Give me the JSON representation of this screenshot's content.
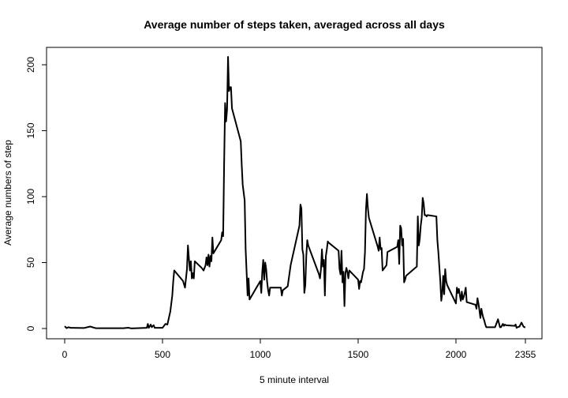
{
  "chart_data": {
    "type": "line",
    "title": "Average number of steps taken, averaged across all days",
    "xlabel": "5 minute interval",
    "ylabel": "Average numbers of step",
    "xlim": [
      0,
      2355
    ],
    "ylim": [
      0,
      206
    ],
    "x_ticks": [
      0,
      500,
      1000,
      1500,
      2000,
      2355
    ],
    "y_ticks": [
      0,
      50,
      100,
      150,
      200
    ],
    "grid": false,
    "legend": "none",
    "series": [
      {
        "color": "#000000",
        "points": [
          [
            0,
            1.7
          ],
          [
            10,
            0.3
          ],
          [
            20,
            1.0
          ],
          [
            30,
            0.5
          ],
          [
            100,
            0.4
          ],
          [
            130,
            1.5
          ],
          [
            160,
            0.2
          ],
          [
            300,
            0.2
          ],
          [
            325,
            0.6
          ],
          [
            340,
            0.1
          ],
          [
            420,
            0.5
          ],
          [
            425,
            3.5
          ],
          [
            430,
            0.5
          ],
          [
            440,
            3.0
          ],
          [
            445,
            1.0
          ],
          [
            455,
            2.5
          ],
          [
            460,
            0.5
          ],
          [
            500,
            0.5
          ],
          [
            515,
            3.5
          ],
          [
            525,
            3.0
          ],
          [
            540,
            13
          ],
          [
            550,
            25
          ],
          [
            555,
            36
          ],
          [
            560,
            44
          ],
          [
            605,
            36
          ],
          [
            615,
            31
          ],
          [
            625,
            45
          ],
          [
            630,
            63
          ],
          [
            635,
            53
          ],
          [
            640,
            44
          ],
          [
            645,
            51
          ],
          [
            650,
            38
          ],
          [
            655,
            42
          ],
          [
            660,
            38
          ],
          [
            665,
            51
          ],
          [
            700,
            46
          ],
          [
            710,
            44
          ],
          [
            720,
            48
          ],
          [
            725,
            54
          ],
          [
            730,
            48
          ],
          [
            735,
            56
          ],
          [
            740,
            47
          ],
          [
            745,
            55
          ],
          [
            750,
            51
          ],
          [
            755,
            69
          ],
          [
            760,
            57
          ],
          [
            800,
            67
          ],
          [
            805,
            73
          ],
          [
            810,
            70
          ],
          [
            815,
            125
          ],
          [
            820,
            171
          ],
          [
            825,
            157
          ],
          [
            830,
            166
          ],
          [
            835,
            206
          ],
          [
            840,
            180
          ],
          [
            845,
            183
          ],
          [
            850,
            183
          ],
          [
            855,
            167
          ],
          [
            900,
            142
          ],
          [
            905,
            124
          ],
          [
            910,
            109
          ],
          [
            920,
            97
          ],
          [
            925,
            60
          ],
          [
            935,
            25
          ],
          [
            940,
            38
          ],
          [
            945,
            22
          ],
          [
            1000,
            36
          ],
          [
            1005,
            27
          ],
          [
            1010,
            43
          ],
          [
            1015,
            52
          ],
          [
            1020,
            37
          ],
          [
            1025,
            50
          ],
          [
            1030,
            45
          ],
          [
            1035,
            35
          ],
          [
            1040,
            29
          ],
          [
            1045,
            25
          ],
          [
            1050,
            31
          ],
          [
            1105,
            31
          ],
          [
            1110,
            25
          ],
          [
            1115,
            29
          ],
          [
            1140,
            32
          ],
          [
            1155,
            48
          ],
          [
            1200,
            78
          ],
          [
            1205,
            94
          ],
          [
            1210,
            91
          ],
          [
            1215,
            60
          ],
          [
            1220,
            56
          ],
          [
            1225,
            27
          ],
          [
            1230,
            33
          ],
          [
            1235,
            55
          ],
          [
            1240,
            67
          ],
          [
            1245,
            63
          ],
          [
            1300,
            41
          ],
          [
            1305,
            38
          ],
          [
            1310,
            45
          ],
          [
            1315,
            60
          ],
          [
            1320,
            47
          ],
          [
            1325,
            52
          ],
          [
            1330,
            25
          ],
          [
            1335,
            55
          ],
          [
            1340,
            60
          ],
          [
            1345,
            66
          ],
          [
            1350,
            65
          ],
          [
            1400,
            59
          ],
          [
            1405,
            45
          ],
          [
            1410,
            41
          ],
          [
            1415,
            59
          ],
          [
            1420,
            35
          ],
          [
            1425,
            43
          ],
          [
            1430,
            17
          ],
          [
            1435,
            42
          ],
          [
            1440,
            46
          ],
          [
            1445,
            43
          ],
          [
            1450,
            38
          ],
          [
            1455,
            44
          ],
          [
            1500,
            37
          ],
          [
            1505,
            30
          ],
          [
            1510,
            36
          ],
          [
            1515,
            35
          ],
          [
            1525,
            43
          ],
          [
            1530,
            45
          ],
          [
            1535,
            58
          ],
          [
            1540,
            90
          ],
          [
            1545,
            102
          ],
          [
            1550,
            91
          ],
          [
            1555,
            84
          ],
          [
            1600,
            62
          ],
          [
            1605,
            59
          ],
          [
            1610,
            69
          ],
          [
            1615,
            60
          ],
          [
            1620,
            61
          ],
          [
            1625,
            44
          ],
          [
            1630,
            45
          ],
          [
            1635,
            46
          ],
          [
            1640,
            47
          ],
          [
            1645,
            48
          ],
          [
            1650,
            58
          ],
          [
            1700,
            62
          ],
          [
            1705,
            67
          ],
          [
            1710,
            49
          ],
          [
            1715,
            78
          ],
          [
            1720,
            76
          ],
          [
            1725,
            63
          ],
          [
            1730,
            68
          ],
          [
            1735,
            35
          ],
          [
            1740,
            37
          ],
          [
            1745,
            40
          ],
          [
            1800,
            47
          ],
          [
            1805,
            85
          ],
          [
            1810,
            63
          ],
          [
            1815,
            68
          ],
          [
            1820,
            78
          ],
          [
            1825,
            84
          ],
          [
            1830,
            99
          ],
          [
            1835,
            95
          ],
          [
            1840,
            86
          ],
          [
            1845,
            86
          ],
          [
            1850,
            85
          ],
          [
            1855,
            86
          ],
          [
            1900,
            85
          ],
          [
            1905,
            67
          ],
          [
            1910,
            58
          ],
          [
            1915,
            47
          ],
          [
            1920,
            36
          ],
          [
            1925,
            21
          ],
          [
            1930,
            27
          ],
          [
            1935,
            40
          ],
          [
            1940,
            26
          ],
          [
            1945,
            45
          ],
          [
            1950,
            36
          ],
          [
            1955,
            33
          ],
          [
            2000,
            19
          ],
          [
            2005,
            31
          ],
          [
            2010,
            27
          ],
          [
            2015,
            30
          ],
          [
            2020,
            25
          ],
          [
            2025,
            21
          ],
          [
            2030,
            28
          ],
          [
            2035,
            22
          ],
          [
            2040,
            24
          ],
          [
            2045,
            27
          ],
          [
            2050,
            31
          ],
          [
            2055,
            20
          ],
          [
            2100,
            18
          ],
          [
            2105,
            15
          ],
          [
            2110,
            23
          ],
          [
            2115,
            19
          ],
          [
            2120,
            14
          ],
          [
            2125,
            8
          ],
          [
            2130,
            15
          ],
          [
            2135,
            11
          ],
          [
            2140,
            8
          ],
          [
            2145,
            6
          ],
          [
            2150,
            3
          ],
          [
            2155,
            1
          ],
          [
            2200,
            1
          ],
          [
            2210,
            5
          ],
          [
            2215,
            7
          ],
          [
            2220,
            4
          ],
          [
            2225,
            1
          ],
          [
            2230,
            1
          ],
          [
            2240,
            3.5
          ],
          [
            2245,
            2
          ],
          [
            2250,
            3
          ],
          [
            2255,
            2.5
          ],
          [
            2300,
            2
          ],
          [
            2305,
            3
          ],
          [
            2310,
            0.5
          ],
          [
            2315,
            1
          ],
          [
            2325,
            1.5
          ],
          [
            2330,
            3
          ],
          [
            2335,
            4.5
          ],
          [
            2340,
            3
          ],
          [
            2345,
            1.5
          ],
          [
            2350,
            1
          ],
          [
            2355,
            1
          ]
        ]
      }
    ]
  }
}
